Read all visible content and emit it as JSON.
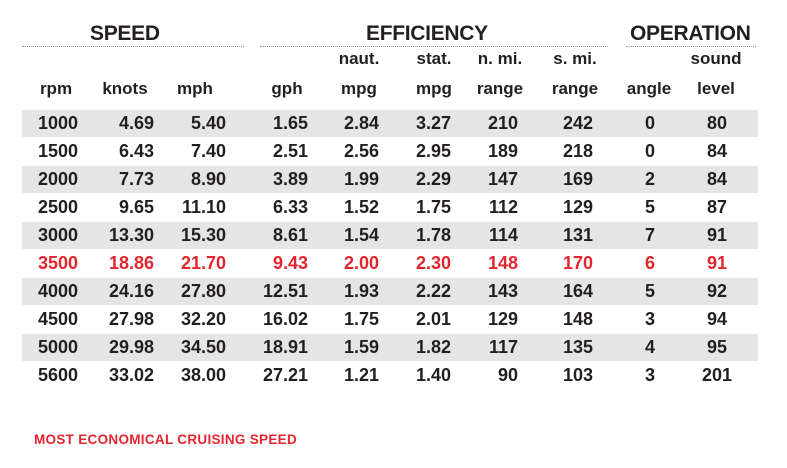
{
  "groups": {
    "speed": "SPEED",
    "efficiency": "EFFICIENCY",
    "operation": "OPERATION"
  },
  "headers": {
    "rpm": [
      "",
      "rpm"
    ],
    "knots": [
      "",
      "knots"
    ],
    "mph": [
      "",
      "mph"
    ],
    "gph": [
      "",
      "gph"
    ],
    "naut_mpg": [
      "naut.",
      "mpg"
    ],
    "stat_mpg": [
      "stat.",
      "mpg"
    ],
    "n_range": [
      "n. mi.",
      "range"
    ],
    "s_range": [
      "s. mi.",
      "range"
    ],
    "angle": [
      "",
      "angle"
    ],
    "sound": [
      "sound",
      "level"
    ]
  },
  "rows": [
    [
      "1000",
      "4.69",
      "5.40",
      "1.65",
      "2.84",
      "3.27",
      "210",
      "242",
      "0",
      "80"
    ],
    [
      "1500",
      "6.43",
      "7.40",
      "2.51",
      "2.56",
      "2.95",
      "189",
      "218",
      "0",
      "84"
    ],
    [
      "2000",
      "7.73",
      "8.90",
      "3.89",
      "1.99",
      "2.29",
      "147",
      "169",
      "2",
      "84"
    ],
    [
      "2500",
      "9.65",
      "11.10",
      "6.33",
      "1.52",
      "1.75",
      "112",
      "129",
      "5",
      "87"
    ],
    [
      "3000",
      "13.30",
      "15.30",
      "8.61",
      "1.54",
      "1.78",
      "114",
      "131",
      "7",
      "91"
    ],
    [
      "3500",
      "18.86",
      "21.70",
      "9.43",
      "2.00",
      "2.30",
      "148",
      "170",
      "6",
      "91"
    ],
    [
      "4000",
      "24.16",
      "27.80",
      "12.51",
      "1.93",
      "2.22",
      "143",
      "164",
      "5",
      "92"
    ],
    [
      "4500",
      "27.98",
      "32.20",
      "16.02",
      "1.75",
      "2.01",
      "129",
      "148",
      "3",
      "94"
    ],
    [
      "5000",
      "29.98",
      "34.50",
      "18.91",
      "1.59",
      "1.82",
      "117",
      "135",
      "4",
      "95"
    ],
    [
      "5600",
      "33.02",
      "38.00",
      "27.21",
      "1.21",
      "1.40",
      "90",
      "103",
      "3",
      "201"
    ]
  ],
  "highlight_row": 5,
  "highlight_color": "#e3262e",
  "note": "MOST ECONOMICAL CRUISING SPEED"
}
